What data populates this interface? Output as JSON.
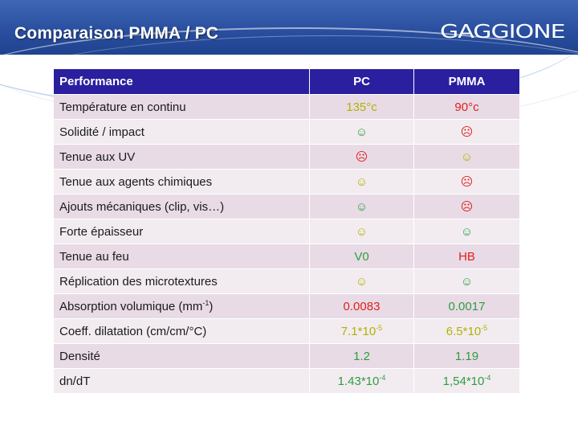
{
  "header": {
    "title": "Comparaison PMMA / PC",
    "logo": "GAGGIONE"
  },
  "table": {
    "columns": [
      "Performance",
      "PC",
      "PMMA"
    ],
    "rows": [
      {
        "label": "Température en continu",
        "pc": "135°c",
        "pmma": "90°c",
        "pc_color": "#b5b000",
        "pmma_color": "#e0201c"
      },
      {
        "label": "Solidité / impact",
        "pc": "☺",
        "pmma": "☹",
        "pc_color": "#2e9e3e",
        "pmma_color": "#e0201c"
      },
      {
        "label": "Tenue aux UV",
        "pc": "☹",
        "pmma": "☺",
        "pc_color": "#e0201c",
        "pmma_color": "#b5b000"
      },
      {
        "label": "Tenue aux agents chimiques",
        "pc": "☺",
        "pmma": "☹",
        "pc_color": "#b5b000",
        "pmma_color": "#e0201c"
      },
      {
        "label": "Ajouts mécaniques (clip, vis…)",
        "pc": "☺",
        "pmma": "☹",
        "pc_color": "#2e9e3e",
        "pmma_color": "#e0201c"
      },
      {
        "label": "Forte épaisseur",
        "pc": "☺",
        "pmma": "☺",
        "pc_color": "#b5b000",
        "pmma_color": "#2e9e3e"
      },
      {
        "label": "Tenue au feu",
        "pc": "V0",
        "pmma": "HB",
        "pc_color": "#2e9e3e",
        "pmma_color": "#e0201c"
      },
      {
        "label": "Réplication des microtextures",
        "pc": "☺",
        "pmma": "☺",
        "pc_color": "#b5b000",
        "pmma_color": "#2e9e3e"
      },
      {
        "label_main": "Absorption volumique (mm",
        "label_sup": "-1",
        "label_tail": ")",
        "pc": "0.0083",
        "pmma": "0.0017",
        "pc_color": "#e0201c",
        "pmma_color": "#2e9e3e"
      },
      {
        "label": "Coeff. dilatation (cm/cm/°C)",
        "pc_main": "7.1*10",
        "pc_sup": "-5",
        "pmma_main": "6.5*10",
        "pmma_sup": "-5",
        "pc_color": "#b5b000",
        "pmma_color": "#b5b000"
      },
      {
        "label": "Densité",
        "pc": "1.2",
        "pmma": "1.19",
        "pc_color": "#2e9e3e",
        "pmma_color": "#2e9e3e"
      },
      {
        "label": "dn/dT",
        "pc_main": "1.43*10",
        "pc_sup": "-4",
        "pmma_main": "1,54*10",
        "pmma_sup": "-4",
        "pc_color": "#2e9e3e",
        "pmma_color": "#2e9e3e"
      }
    ]
  }
}
